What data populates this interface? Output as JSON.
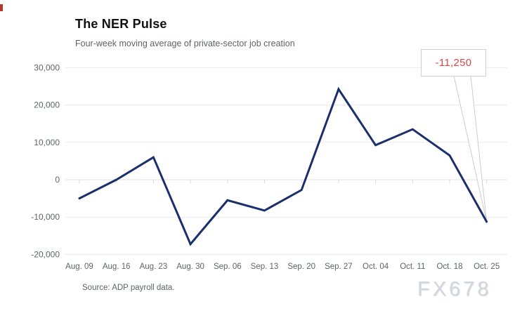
{
  "page": {
    "title": "The NER Pulse",
    "subtitle": "Four-week moving average of private-sector job creation",
    "source": "Source: ADP payroll data.",
    "watermark": "FX678"
  },
  "callout": {
    "label": "-11,250"
  },
  "colors": {
    "background": "#ffffff",
    "line": "#1b2f6d",
    "grid": "#e9eaec",
    "zero_grid": "#e0e1e4",
    "tick": "#d8d9dc",
    "axis_text": "#5f6368",
    "callout_text": "#d94848",
    "callout_border": "#cfcfcf",
    "leader": "#cccccc",
    "watermark_text": "#ccd8e2"
  },
  "chart_data": {
    "type": "line",
    "title": "The NER Pulse",
    "subtitle": "Four-week moving average of private-sector job creation",
    "categories": [
      "Aug. 09",
      "Aug. 16",
      "Aug. 23",
      "Aug. 30",
      "Sep. 06",
      "Sep. 13",
      "Sep. 20",
      "Sep. 27",
      "Oct. 04",
      "Oct. 11",
      "Oct. 18",
      "Oct. 25"
    ],
    "values": [
      -5000,
      0,
      6000,
      -17250,
      -5500,
      -8250,
      -2750,
      24250,
      9250,
      13500,
      6500,
      -11250
    ],
    "y_ticks": [
      30000,
      20000,
      10000,
      0,
      -10000,
      -20000
    ],
    "ylim": [
      -20000,
      30000
    ],
    "xlabel": "",
    "ylabel": "",
    "grid": "horizontal",
    "legend": "none",
    "annotation": {
      "index": 11,
      "label": "-11,250"
    },
    "source": "Source: ADP payroll data."
  }
}
